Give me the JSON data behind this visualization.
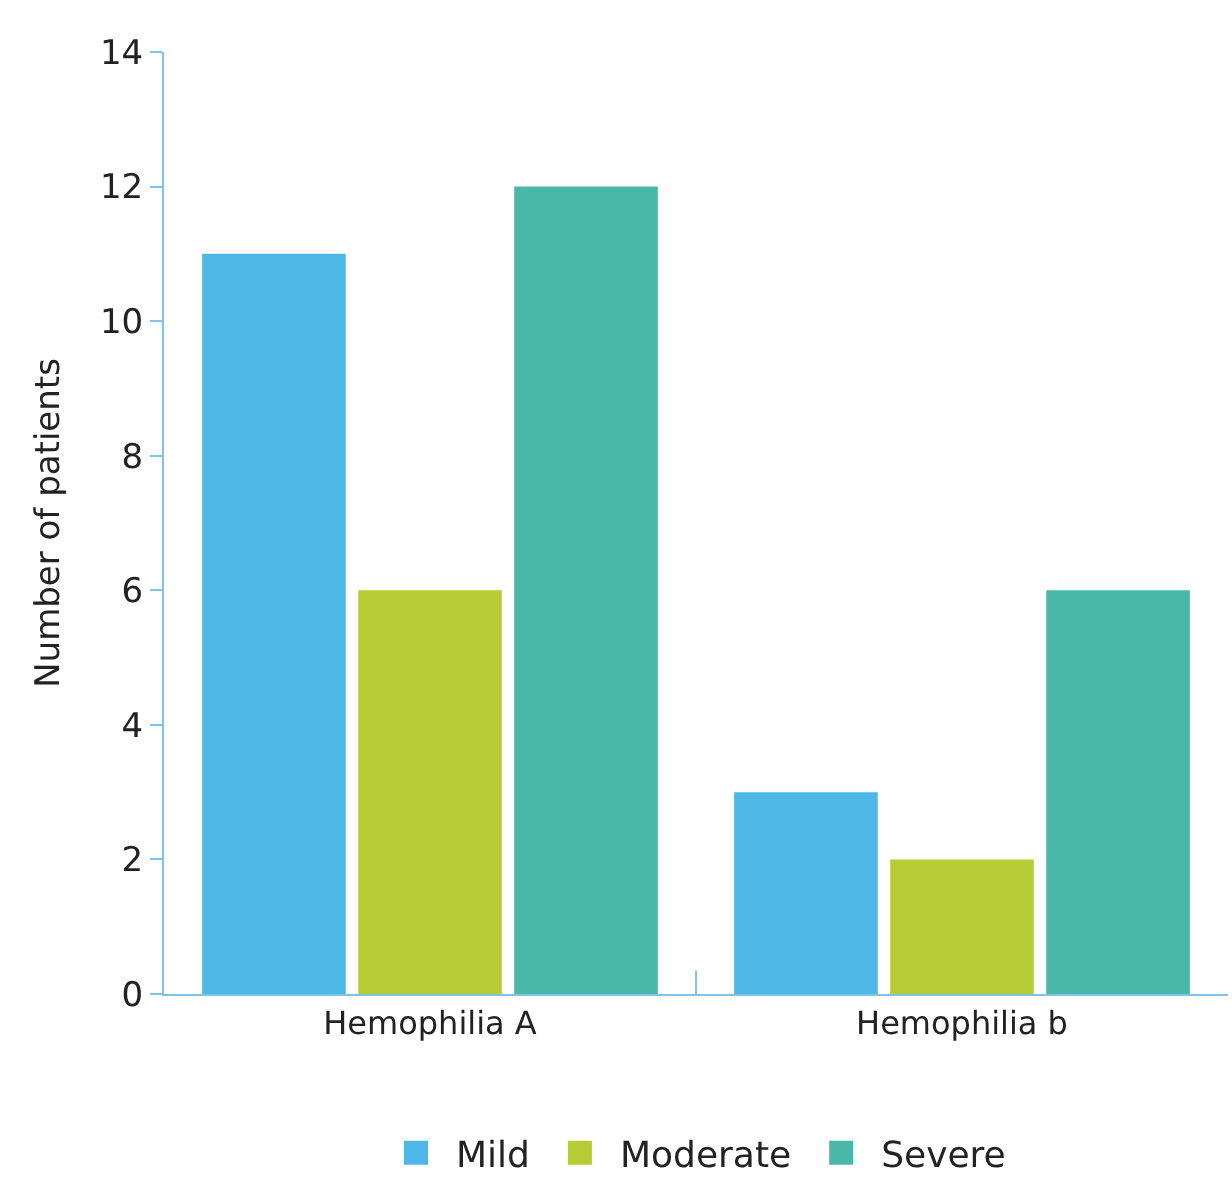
{
  "chart_data": {
    "type": "bar",
    "ylabel": "Number of patients",
    "categories": [
      "Hemophilia A",
      "Hemophilia b"
    ],
    "series": [
      {
        "name": "Mild",
        "color": "#4db8e8",
        "values": [
          11,
          3
        ]
      },
      {
        "name": "Moderate",
        "color": "#b5cc35",
        "values": [
          6,
          2
        ]
      },
      {
        "name": "Severe",
        "color": "#4ab8a8",
        "values": [
          12,
          6
        ]
      }
    ],
    "ylim": [
      0,
      14
    ],
    "yticks": [
      0,
      2,
      4,
      6,
      8,
      10,
      12,
      14
    ],
    "legend": "bottom"
  }
}
